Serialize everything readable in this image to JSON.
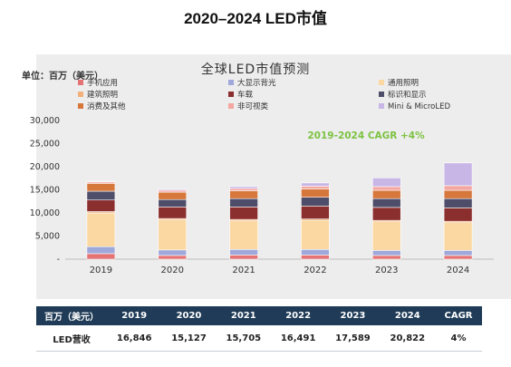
{
  "page_title": "2020–2024 LED市值",
  "chart_data": {
    "type": "bar",
    "stacked": true,
    "title": "全球LED市值预测",
    "ylabel": "单位：百万（美元）",
    "annotation": "2019-2024 CAGR +4%",
    "categories": [
      "2019",
      "2020",
      "2021",
      "2022",
      "2023",
      "2024"
    ],
    "y_ticks": [
      "-",
      "5,000",
      "10,000",
      "15,000",
      "20,000",
      "25,000",
      "30,000"
    ],
    "ylim": [
      0,
      30000
    ],
    "grid": false,
    "legend_position": "top",
    "series": [
      {
        "name": "手机应用",
        "color": "#e57373",
        "values": [
          1200,
          800,
          900,
          900,
          800,
          800
        ]
      },
      {
        "name": "大显示背光",
        "color": "#9fa8da",
        "values": [
          1500,
          1200,
          1200,
          1200,
          1100,
          1100
        ]
      },
      {
        "name": "通用照明",
        "color": "#fbd8a2",
        "values": [
          7300,
          6500,
          6200,
          6300,
          6200,
          6000
        ]
      },
      {
        "name": "建筑照明",
        "color": "#f0b27a",
        "values": [
          300,
          300,
          300,
          300,
          300,
          300
        ]
      },
      {
        "name": "车载",
        "color": "#8b2e2e",
        "values": [
          2500,
          2500,
          2700,
          2800,
          2800,
          2900
        ]
      },
      {
        "name": "标识和显示",
        "color": "#4e4e6a",
        "values": [
          1900,
          1600,
          1800,
          1900,
          1900,
          2000
        ]
      },
      {
        "name": "消费及其他",
        "color": "#d6783c",
        "values": [
          1700,
          1600,
          1700,
          1800,
          1800,
          1800
        ]
      },
      {
        "name": "非可视类",
        "color": "#f4a6a0",
        "values": [
          300,
          400,
          500,
          600,
          800,
          1000
        ]
      },
      {
        "name": "Mini & MicroLED",
        "color": "#c7b6e6",
        "values": [
          146,
          227,
          405,
          691,
          1889,
          4922
        ]
      }
    ]
  },
  "table": {
    "headers": [
      "百万（美元）",
      "2019",
      "2020",
      "2021",
      "2022",
      "2023",
      "2024",
      "CAGR"
    ],
    "rows": [
      [
        "LED营收",
        "16,846",
        "15,127",
        "15,705",
        "16,491",
        "17,589",
        "20,822",
        "4%"
      ]
    ]
  },
  "colors": {
    "header_bg": "#1f3b57",
    "panel_bg": "#ededed",
    "cagr_text": "#7cc242"
  }
}
